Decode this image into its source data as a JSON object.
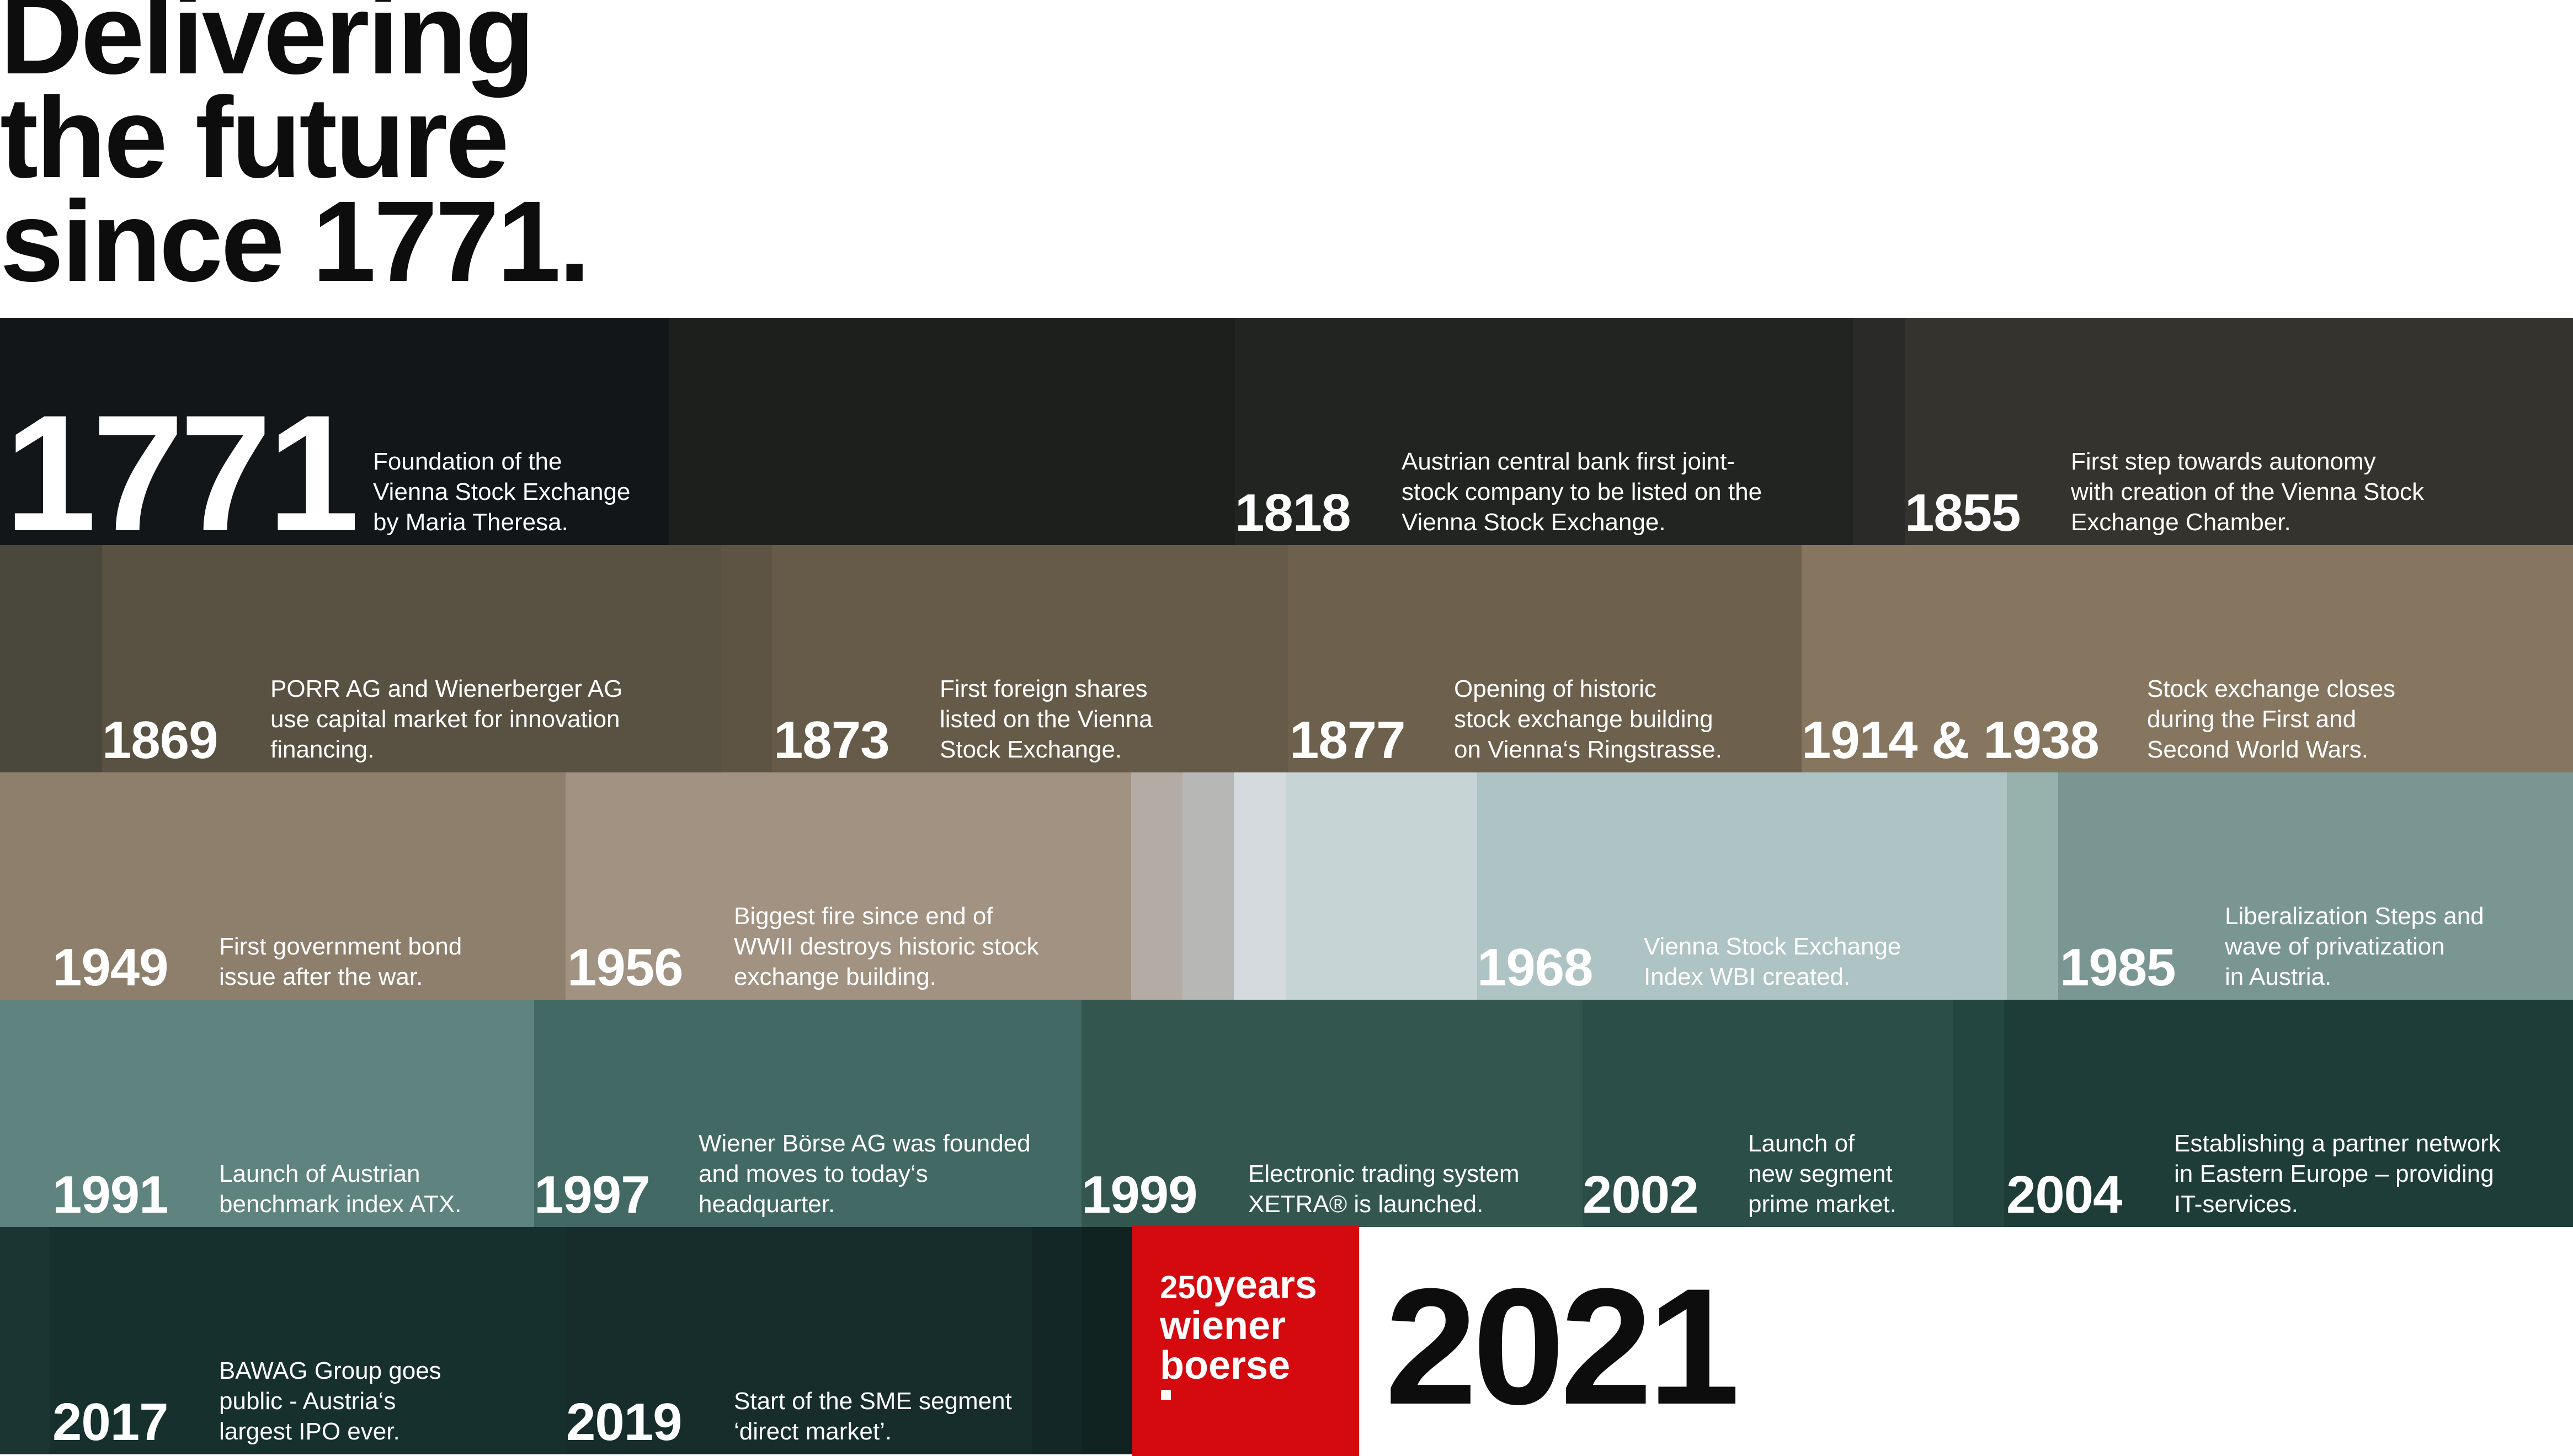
{
  "headline": [
    "Delivering",
    "the future",
    "since 1771."
  ],
  "colors": {
    "background": "#ffffff",
    "text_dark": "#0d0d0d",
    "text_light": "#ffffff",
    "brand_red": "#d40a0f"
  },
  "logo": {
    "number": "250",
    "line1_word": "years",
    "line2": "wiener",
    "line3": "boerse"
  },
  "final_year": "2021",
  "events": [
    {
      "year": "1771",
      "description": "Foundation of the\nVienna Stock Exchange\nby Maria Theresa."
    },
    {
      "year": "1818",
      "description": "Austrian central bank first joint-\nstock company to be listed on the\nVienna Stock Exchange."
    },
    {
      "year": "1855",
      "description": "First step towards autonomy\nwith creation of the Vienna Stock\nExchange Chamber."
    },
    {
      "year": "1869",
      "description": "PORR AG and Wienerberger AG\nuse capital market for innovation\nfinancing."
    },
    {
      "year": "1873",
      "description": "First foreign shares\nlisted on the Vienna\nStock Exchange."
    },
    {
      "year": "1877",
      "description": "Opening of historic\nstock exchange building\non Vienna‘s Ringstrasse."
    },
    {
      "year": "1914 & 1938",
      "description": "Stock exchange closes\nduring the First and\nSecond World Wars."
    },
    {
      "year": "1949",
      "description": "First government bond\nissue after the war."
    },
    {
      "year": "1956",
      "description": "Biggest fire since end of\nWWII destroys historic stock\nexchange building."
    },
    {
      "year": "1968",
      "description": "Vienna Stock Exchange\nIndex WBI created."
    },
    {
      "year": "1985",
      "description": "Liberalization Steps and\nwave of privatization\nin Austria."
    },
    {
      "year": "1991",
      "description": "Launch of Austrian\nbenchmark index ATX."
    },
    {
      "year": "1997",
      "description": "Wiener Börse AG was founded\nand moves to today‘s\nheadquarter."
    },
    {
      "year": "1999",
      "description": "Electronic trading system\nXETRA® is launched."
    },
    {
      "year": "2002",
      "description": "Launch of\nnew segment\nprime market."
    },
    {
      "year": "2004",
      "description": "Establishing a partner network\nin Eastern Europe – providing\nIT-services."
    },
    {
      "year": "2017",
      "description": "BAWAG Group goes\npublic - Austria‘s\nlargest IPO ever."
    },
    {
      "year": "2019",
      "description": "Start of the SME segment\n‘direct market’."
    }
  ]
}
